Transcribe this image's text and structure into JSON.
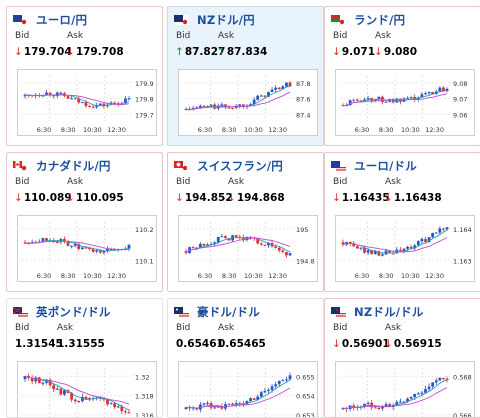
{
  "colors": {
    "down_bg": "#fbe9e9",
    "up_bg": "#e8f3fb",
    "candle_up": "#2a55c8",
    "candle_down": "#e03030",
    "ma_short": "#c04fd0",
    "ma_long": "#28a0b0"
  },
  "labels": {
    "bid": "Bid",
    "ask": "Ask"
  },
  "cards": [
    {
      "pair": "ユーロ/円",
      "flag": "eu-jp-flag",
      "state": "down",
      "bid": "179.704",
      "ask": "179.708",
      "bid_dir": "down",
      "ask_dir": "down",
      "yticks": [
        "179.9",
        "179.8",
        "179.7"
      ],
      "xticks": [
        "6:30",
        "8:30",
        "10:30",
        "12:30"
      ],
      "trend": "flat-high"
    },
    {
      "pair": "NZドル/円",
      "flag": "nz-jp-flag",
      "state": "up",
      "bid": "87.827",
      "ask": "87.834",
      "bid_dir": "up",
      "ask_dir": "up",
      "yticks": [
        "87.8",
        "87.6",
        "87.4"
      ],
      "xticks": [
        "6:30",
        "8:30",
        "10:30",
        "12:30"
      ],
      "trend": "rise"
    },
    {
      "pair": "ランド/円",
      "flag": "za-jp-flag",
      "state": "down",
      "bid": "9.071",
      "ask": "9.080",
      "bid_dir": "down",
      "ask_dir": "down",
      "yticks": [
        "9.08",
        "9.07",
        "9.06"
      ],
      "xticks": [
        "6:30",
        "8:30",
        "10:30",
        "12:30"
      ],
      "trend": "rise-soft"
    },
    {
      "pair": "カナダドル/円",
      "flag": "ca-jp-flag",
      "state": "down",
      "bid": "110.089",
      "ask": "110.095",
      "bid_dir": "down",
      "ask_dir": "down",
      "yticks": [
        "110.2",
        "110.1"
      ],
      "xticks": [
        "6:30",
        "8:30",
        "10:30",
        "12:30"
      ],
      "trend": "flat-high"
    },
    {
      "pair": "スイスフラン/円",
      "flag": "ch-jp-flag",
      "state": "down",
      "bid": "194.852",
      "ask": "194.868",
      "bid_dir": "down",
      "ask_dir": "down",
      "yticks": [
        "195",
        "194.8"
      ],
      "xticks": [
        "6:30",
        "8:30",
        "10:30",
        "12:30"
      ],
      "trend": "hump"
    },
    {
      "pair": "ユーロ/ドル",
      "flag": "eu-us-flag",
      "state": "down",
      "bid": "1.16435",
      "ask": "1.16438",
      "bid_dir": "down",
      "ask_dir": "down",
      "yticks": [
        "1.164",
        "1.163"
      ],
      "xticks": [
        "6:30",
        "8:30",
        "10:30",
        "12:30"
      ],
      "trend": "dip-rise"
    },
    {
      "pair": "英ポンド/ドル",
      "flag": "gb-us-flag",
      "state": "flat",
      "bid": "1.31545",
      "ask": "1.31555",
      "bid_dir": "none",
      "ask_dir": "none",
      "yticks": [
        "1.32",
        "1.318",
        "1.316"
      ],
      "xticks": [],
      "trend": "fall"
    },
    {
      "pair": "豪ドル/ドル",
      "flag": "au-us-flag",
      "state": "flat",
      "bid": "0.65461",
      "ask": "0.65465",
      "bid_dir": "none",
      "ask_dir": "none",
      "yticks": [
        "0.655",
        "0.654",
        "0.653"
      ],
      "xticks": [],
      "trend": "rise"
    },
    {
      "pair": "NZドル/ドル",
      "flag": "nz-us-flag",
      "state": "down",
      "bid": "0.56901",
      "ask": "0.56915",
      "bid_dir": "down",
      "ask_dir": "down",
      "yticks": [
        "0.568",
        "0.566"
      ],
      "xticks": [],
      "trend": "rise"
    }
  ]
}
